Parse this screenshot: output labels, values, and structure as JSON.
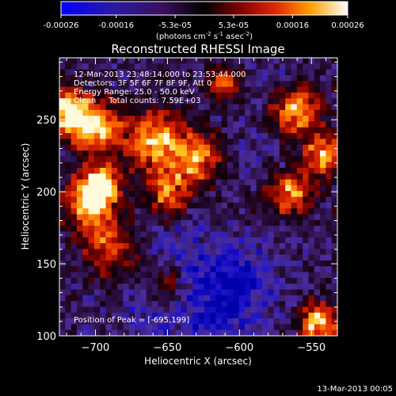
{
  "colorbar": {
    "tick_labels": [
      "-0.00026",
      "-0.00016",
      "-5.3e-05",
      "5.3e-05",
      "0.00016",
      "0.00026"
    ],
    "tick_values": [
      -0.00026,
      -0.00016,
      -5.3e-05,
      5.3e-05,
      0.00016,
      0.00026
    ],
    "range": [
      -0.00026,
      0.00026
    ],
    "unit_parts": [
      "(photons cm",
      "-2",
      " s",
      "-1",
      " asec",
      "-2",
      ")"
    ]
  },
  "chart_data": {
    "type": "heatmap",
    "title": "Reconstructed RHESSI Image",
    "xlabel": "Heliocentric X (arcsec)",
    "ylabel": "Heliocentric Y (arcsec)",
    "xlim": [
      -725,
      -532
    ],
    "ylim": [
      100,
      293
    ],
    "x_ticks": [
      -700,
      -650,
      -600,
      -550
    ],
    "y_ticks": [
      100,
      150,
      200,
      250
    ],
    "colormap": [
      "#000080",
      "#0000ff",
      "#4b2d9b",
      "#2b0a3a",
      "#5a0000",
      "#c81400",
      "#ff6400",
      "#ffc800",
      "#ffffff"
    ],
    "peak_position": [
      -695,
      199
    ],
    "hot_regions": [
      {
        "x": -720,
        "y": 255,
        "r": 18,
        "level": 1.0
      },
      {
        "x": -700,
        "y": 245,
        "r": 16,
        "level": 0.9
      },
      {
        "x": -697,
        "y": 205,
        "r": 14,
        "level": 1.0
      },
      {
        "x": -705,
        "y": 190,
        "r": 18,
        "level": 0.75
      },
      {
        "x": -660,
        "y": 235,
        "r": 22,
        "level": 0.85
      },
      {
        "x": -630,
        "y": 222,
        "r": 18,
        "level": 0.7
      },
      {
        "x": -650,
        "y": 198,
        "r": 14,
        "level": 0.6
      },
      {
        "x": -560,
        "y": 255,
        "r": 18,
        "level": 0.85
      },
      {
        "x": -565,
        "y": 200,
        "r": 16,
        "level": 0.75
      },
      {
        "x": -540,
        "y": 225,
        "r": 14,
        "level": 0.8
      },
      {
        "x": -545,
        "y": 110,
        "r": 14,
        "level": 0.95
      },
      {
        "x": -690,
        "y": 160,
        "r": 18,
        "level": 0.55
      },
      {
        "x": -610,
        "y": 275,
        "r": 12,
        "level": 0.55
      },
      {
        "x": -650,
        "y": 135,
        "r": 14,
        "level": 0.4
      }
    ],
    "cold_regions": [
      {
        "x": -620,
        "y": 120,
        "r": 35,
        "level": -0.8
      },
      {
        "x": -640,
        "y": 160,
        "r": 25,
        "level": -0.5
      },
      {
        "x": -590,
        "y": 230,
        "r": 22,
        "level": -0.5
      },
      {
        "x": -600,
        "y": 140,
        "r": 22,
        "level": -0.7
      },
      {
        "x": -665,
        "y": 115,
        "r": 18,
        "level": -0.5
      },
      {
        "x": -580,
        "y": 275,
        "r": 14,
        "level": -0.45
      }
    ]
  },
  "info": {
    "lines": [
      "12-Mar-2013 23:48:14.000 to 23:53:44.000",
      "Detectors: 3F 5F 6F 7F 8F 9F, Att 0",
      "Energy Range: 25.0 - 50.0 keV",
      "Clean     Total counts: 7.59E+03"
    ],
    "peak_label": "Position of Peak = [-695,199]"
  },
  "timestamp": "13-Mar-2013 00:05"
}
